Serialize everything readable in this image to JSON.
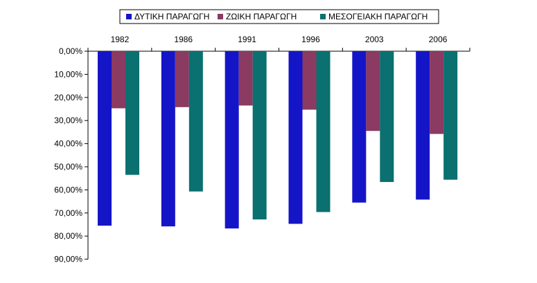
{
  "chart_data": {
    "type": "bar",
    "orientation": "vertical, bars extend downward from top axis",
    "categories": [
      "1982",
      "1986",
      "1991",
      "1996",
      "2003",
      "2006"
    ],
    "series": [
      {
        "name": "ΔΥΤΙΚΗ ΠΑΡΑΓΩΓΗ",
        "color": "#1515c8",
        "values": [
          75.5,
          75.8,
          76.7,
          74.7,
          65.5,
          64.2
        ]
      },
      {
        "name": "ΖΩΙΚΗ ΠΑΡΑΓΩΓΗ",
        "color": "#8b3a62",
        "values": [
          24.7,
          24.2,
          23.5,
          25.3,
          34.5,
          35.8
        ]
      },
      {
        "name": "ΜΕΣΟΓΕΙΑΚΗ ΠΑΡΑΓΩΓΗ",
        "color": "#0a7070",
        "values": [
          53.5,
          60.7,
          72.8,
          69.6,
          56.6,
          55.6
        ]
      }
    ],
    "y_ticks": [
      "0,00%",
      "10,00%",
      "20,00%",
      "30,00%",
      "40,00%",
      "50,00%",
      "60,00%",
      "70,00%",
      "80,00%",
      "90,00%"
    ],
    "ylim": [
      0,
      90
    ],
    "legend_position": "top",
    "grid": false,
    "title": "",
    "xlabel": "",
    "ylabel": ""
  }
}
